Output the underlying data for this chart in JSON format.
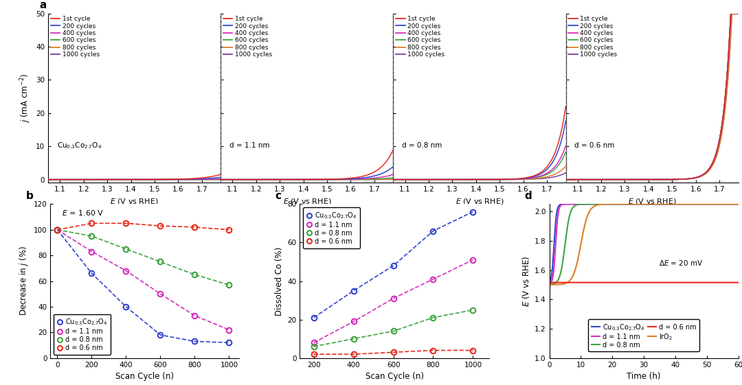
{
  "panel_a_labels": [
    "Cu$_{0.3}$Co$_{2.7}$O$_4$",
    "d = 1.1 nm",
    "d = 0.8 nm",
    "d = 0.6 nm"
  ],
  "cycle_colors": [
    "#e8291c",
    "#3244cc",
    "#d62cbc",
    "#3ba53f",
    "#e07d25",
    "#7b3fa0"
  ],
  "cycle_labels": [
    "1st cycle",
    "200 cycles",
    "400 cycles",
    "600 cycles",
    "800 cycles",
    "1000 cycles"
  ],
  "panel_b_colors": [
    "#3244cc",
    "#d62cbc",
    "#3ba53f",
    "#e8291c"
  ],
  "panel_b_labels": [
    "Cu$_{0.3}$Co$_{2.7}$O$_4$",
    "d = 1.1 nm",
    "d = 0.8 nm",
    "d = 0.6 nm"
  ],
  "panel_b_x": [
    0,
    200,
    400,
    600,
    800,
    1000
  ],
  "panel_b_data": {
    "Cu": [
      100,
      66,
      40,
      18,
      13,
      12
    ],
    "d11": [
      100,
      83,
      68,
      50,
      33,
      22
    ],
    "d08": [
      100,
      95,
      85,
      75,
      65,
      57
    ],
    "d06": [
      100,
      105,
      105,
      103,
      102,
      100
    ]
  },
  "panel_c_colors": [
    "#3244cc",
    "#d62cbc",
    "#3ba53f",
    "#e8291c"
  ],
  "panel_c_labels": [
    "Cu$_{0.3}$Co$_{2.7}$O$_4$",
    "d = 1.1 nm",
    "d = 0.8 nm",
    "d = 0.6 nm"
  ],
  "panel_c_x": [
    200,
    400,
    600,
    800,
    1000
  ],
  "panel_c_data": {
    "Cu": [
      21,
      35,
      48,
      66,
      76
    ],
    "d11": [
      8,
      19,
      31,
      41,
      51
    ],
    "d08": [
      6,
      10,
      14,
      21,
      25
    ],
    "d06": [
      2,
      2,
      3,
      4,
      4
    ]
  },
  "panel_d_colors": [
    "#3244cc",
    "#d62cbc",
    "#3ba53f",
    "#e07d25",
    "#e8291c"
  ],
  "panel_d_labels": [
    "Cu$_{0.3}$Co$_{2.7}$O$_4$",
    "d = 1.1 nm",
    "d = 0.8 nm",
    "IrO$_2$",
    "d = 0.6 nm"
  ],
  "panel_d_legend_colors": [
    "#3244cc",
    "#d62cbc",
    "#3ba53f",
    "#e07d25",
    "#e8291c"
  ],
  "panel_d_legend_labels_col1": [
    "Cu$_{0.3}$Co$_{2.7}$O$_4$",
    "d = 0.8 nm",
    "IrO$_2$"
  ],
  "panel_d_legend_labels_col2": [
    "d = 1.1 nm",
    "d = 0.6 nm"
  ]
}
